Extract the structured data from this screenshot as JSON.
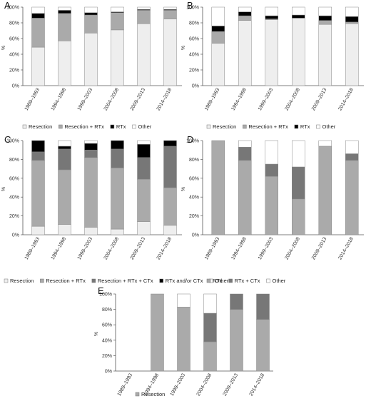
{
  "chart_data": [
    {
      "panel": "A",
      "type": "bar",
      "stacked": true,
      "ylabel": "%",
      "ylim": [
        0,
        100
      ],
      "yticks": [
        "0%",
        "20%",
        "40%",
        "60%",
        "80%",
        "100%"
      ],
      "categories": [
        "1989–1993",
        "1994–1998",
        "1999–2003",
        "2004–2008",
        "2009–2013",
        "2014–2018"
      ],
      "series": [
        {
          "name": "Resection",
          "color": "#eeeeee",
          "values": [
            49,
            57,
            67,
            71,
            79,
            85
          ]
        },
        {
          "name": "Resection + RTx",
          "color": "#aaaaaa",
          "values": [
            37,
            35,
            23,
            22,
            17,
            11
          ]
        },
        {
          "name": "RTx",
          "color": "#000000",
          "values": [
            6,
            4,
            3,
            1,
            1,
            1
          ]
        },
        {
          "name": "Other",
          "color": "#ffffff",
          "values": [
            8,
            4,
            7,
            6,
            3,
            3
          ]
        }
      ]
    },
    {
      "panel": "B",
      "type": "bar",
      "stacked": true,
      "ylabel": "%",
      "ylim": [
        0,
        100
      ],
      "yticks": [
        "0%",
        "20%",
        "40%",
        "60%",
        "80%",
        "100%"
      ],
      "categories": [
        "1989–1993",
        "1994–1998",
        "1999–2003",
        "2004–2008",
        "2009–2013",
        "2014–2018"
      ],
      "series": [
        {
          "name": "Resection",
          "color": "#eeeeee",
          "values": [
            54,
            83,
            84,
            86,
            78,
            79
          ]
        },
        {
          "name": "Resection + RTx",
          "color": "#aaaaaa",
          "values": [
            15,
            6,
            1,
            0,
            5,
            2
          ]
        },
        {
          "name": "RTx",
          "color": "#000000",
          "values": [
            7,
            5,
            4,
            4,
            6,
            7
          ]
        },
        {
          "name": "Other",
          "color": "#ffffff",
          "values": [
            24,
            6,
            11,
            10,
            11,
            12
          ]
        }
      ]
    },
    {
      "panel": "C",
      "type": "bar",
      "stacked": true,
      "ylabel": "%",
      "ylim": [
        0,
        100
      ],
      "yticks": [
        "0%",
        "20%",
        "40%",
        "60%",
        "80%",
        "100%"
      ],
      "categories": [
        "1989–1993",
        "1994–1998",
        "1999–2003",
        "2004–2008",
        "2009–2013",
        "2014–2018"
      ],
      "series": [
        {
          "name": "Resection",
          "color": "#eeeeee",
          "values": [
            9,
            11,
            8,
            6,
            14,
            10
          ]
        },
        {
          "name": "Resection + RTx",
          "color": "#aaaaaa",
          "values": [
            70,
            58,
            74,
            65,
            45,
            40
          ]
        },
        {
          "name": "Resection + RTx + CTx",
          "color": "#777777",
          "values": [
            9,
            22,
            8,
            20,
            23,
            44
          ]
        },
        {
          "name": "RTx and/or CTx",
          "color": "#000000",
          "values": [
            12,
            3,
            7,
            9,
            14,
            6
          ]
        },
        {
          "name": "Other",
          "color": "#ffffff",
          "values": [
            0,
            6,
            3,
            0,
            4,
            0
          ]
        }
      ]
    },
    {
      "panel": "D",
      "type": "bar",
      "stacked": true,
      "ylabel": "%",
      "ylim": [
        0,
        100
      ],
      "yticks": [
        "0%",
        "20%",
        "40%",
        "60%",
        "80%",
        "100%"
      ],
      "categories": [
        "1989–1993",
        "1994–1998",
        "1999–2003",
        "2004–2008",
        "2009–2013",
        "2014–2018"
      ],
      "series": [
        {
          "name": "RTx",
          "color": "#aaaaaa",
          "values": [
            100,
            79,
            62,
            38,
            94,
            79
          ]
        },
        {
          "name": "RTx + CTx",
          "color": "#777777",
          "values": [
            0,
            14,
            13,
            34,
            0,
            7
          ]
        },
        {
          "name": "Other",
          "color": "#ffffff",
          "values": [
            0,
            7,
            25,
            28,
            6,
            14
          ]
        }
      ]
    },
    {
      "panel": "E",
      "type": "bar",
      "stacked": true,
      "ylabel": "%",
      "ylim": [
        0,
        100
      ],
      "yticks": [
        "0%",
        "20%",
        "40%",
        "60%",
        "80%",
        "100%"
      ],
      "categories": [
        "1989–1993",
        "1994–1998",
        "1999–2003",
        "2004–2008",
        "2009–2013",
        "2014–2018"
      ],
      "series": [
        {
          "name": "Resection",
          "color": "#aaaaaa",
          "values": [
            0,
            100,
            83,
            38,
            80,
            67
          ]
        },
        {
          "name": "",
          "color": "#777777",
          "values": [
            0,
            0,
            0,
            37,
            20,
            33
          ]
        },
        {
          "name": "",
          "color": "#ffffff",
          "values": [
            0,
            0,
            17,
            25,
            0,
            0
          ]
        }
      ]
    }
  ]
}
